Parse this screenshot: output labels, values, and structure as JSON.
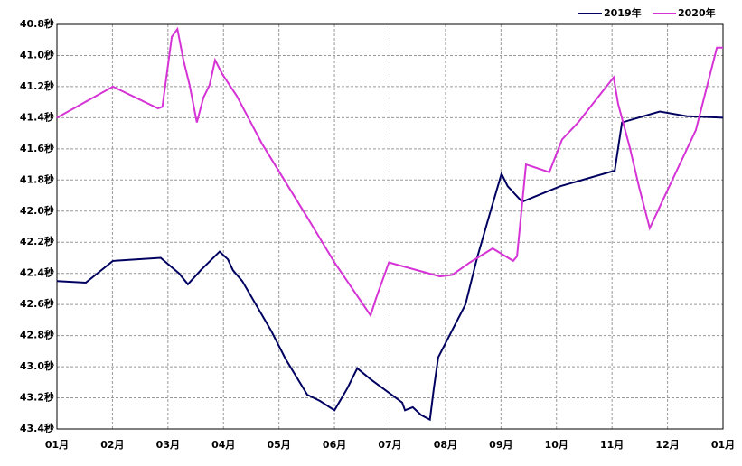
{
  "chart_data": {
    "type": "line",
    "xlim": [
      0,
      12
    ],
    "xticks": [
      {
        "value": 0,
        "label": "01月"
      },
      {
        "value": 1,
        "label": "02月"
      },
      {
        "value": 2,
        "label": "03月"
      },
      {
        "value": 3,
        "label": "04月"
      },
      {
        "value": 4,
        "label": "05月"
      },
      {
        "value": 5,
        "label": "06月"
      },
      {
        "value": 6,
        "label": "07月"
      },
      {
        "value": 7,
        "label": "08月"
      },
      {
        "value": 8,
        "label": "09月"
      },
      {
        "value": 9,
        "label": "10月"
      },
      {
        "value": 10,
        "label": "11月"
      },
      {
        "value": 11,
        "label": "12月"
      },
      {
        "value": 12,
        "label": "01月"
      }
    ],
    "ylim": [
      43.4,
      40.8
    ],
    "yticks": [
      {
        "value": 40.8,
        "label": "40.8秒"
      },
      {
        "value": 41.0,
        "label": "41.0秒"
      },
      {
        "value": 41.2,
        "label": "41.2秒"
      },
      {
        "value": 41.4,
        "label": "41.4秒"
      },
      {
        "value": 41.6,
        "label": "41.6秒"
      },
      {
        "value": 41.8,
        "label": "41.8秒"
      },
      {
        "value": 42.0,
        "label": "42.0秒"
      },
      {
        "value": 42.2,
        "label": "42.2秒"
      },
      {
        "value": 42.4,
        "label": "42.4秒"
      },
      {
        "value": 42.6,
        "label": "42.6秒"
      },
      {
        "value": 42.8,
        "label": "42.8秒"
      },
      {
        "value": 43.0,
        "label": "43.0秒"
      },
      {
        "value": 43.2,
        "label": "43.2秒"
      },
      {
        "value": 43.4,
        "label": "43.4秒"
      }
    ],
    "grid": true,
    "legend": "top-right",
    "series": [
      {
        "name": "2019年",
        "color": "#000060",
        "x": [
          0,
          0.52,
          1.01,
          1.87,
          2.2,
          2.36,
          2.59,
          2.93,
          3.08,
          3.17,
          3.34,
          3.86,
          4.12,
          4.51,
          4.74,
          5.0,
          5.23,
          5.41,
          5.65,
          6.22,
          6.27,
          6.41,
          6.56,
          6.72,
          6.79,
          6.87,
          7.36,
          7.57,
          7.82,
          8.01,
          8.12,
          8.38,
          9.07,
          10.05,
          10.18,
          10.86,
          11.35,
          12
        ],
        "values": [
          42.45,
          42.46,
          42.32,
          42.3,
          42.4,
          42.47,
          42.38,
          42.26,
          42.31,
          42.38,
          42.45,
          42.77,
          42.95,
          43.18,
          43.22,
          43.28,
          43.14,
          43.01,
          43.08,
          43.23,
          43.28,
          43.26,
          43.31,
          43.34,
          43.14,
          42.94,
          42.6,
          42.3,
          41.99,
          41.76,
          41.84,
          41.94,
          41.84,
          41.74,
          41.43,
          41.36,
          41.39,
          41.4
        ]
      },
      {
        "name": "2020年",
        "color": "#d633d6",
        "x": [
          0,
          1.01,
          1.82,
          1.9,
          2.07,
          2.17,
          2.28,
          2.39,
          2.52,
          2.64,
          2.75,
          2.85,
          2.98,
          3.24,
          3.7,
          4.51,
          5.0,
          5.65,
          5.75,
          5.98,
          6.9,
          7.12,
          7.44,
          7.85,
          8.22,
          8.29,
          8.45,
          8.87,
          9.1,
          9.39,
          9.72,
          10.03,
          10.11,
          10.32,
          10.49,
          10.68,
          11.02,
          11.51,
          11.89,
          12
        ],
        "values": [
          41.4,
          41.2,
          41.34,
          41.33,
          40.88,
          40.83,
          41.03,
          41.19,
          41.43,
          41.27,
          41.19,
          41.03,
          41.12,
          41.26,
          41.57,
          42.04,
          42.33,
          42.67,
          42.56,
          42.33,
          42.42,
          42.41,
          42.33,
          42.24,
          42.32,
          42.29,
          41.7,
          41.75,
          41.54,
          41.43,
          41.28,
          41.14,
          41.31,
          41.59,
          41.85,
          42.11,
          41.85,
          41.48,
          40.95,
          40.95
        ]
      }
    ]
  }
}
